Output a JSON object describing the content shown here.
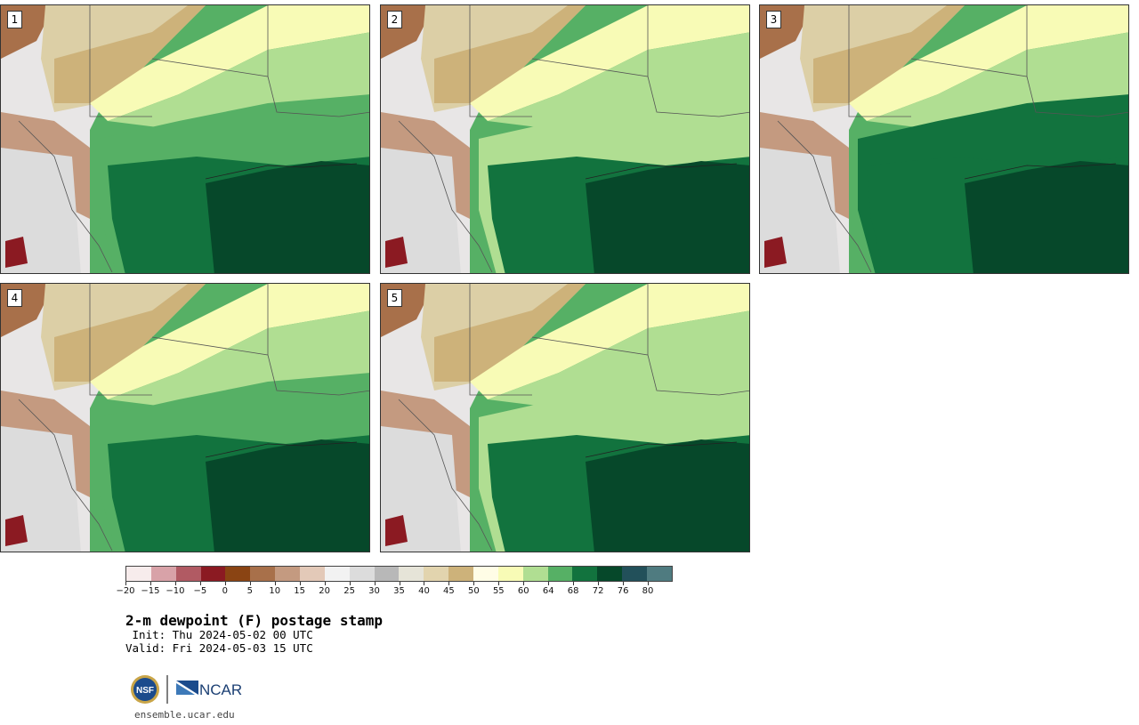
{
  "panels": [
    {
      "label": "1"
    },
    {
      "label": "2"
    },
    {
      "label": "3"
    },
    {
      "label": "4"
    },
    {
      "label": "5"
    }
  ],
  "colorbar": {
    "ticks": [
      "−20",
      "−15",
      "−10",
      "−5",
      "0",
      "5",
      "10",
      "15",
      "20",
      "25",
      "30",
      "35",
      "40",
      "45",
      "50",
      "55",
      "60",
      "64",
      "68",
      "72",
      "76",
      "80"
    ],
    "colors": [
      "#f7ecec",
      "#d8a2a8",
      "#b15a63",
      "#8b1a22",
      "#8a4413",
      "#a8704a",
      "#c49a80",
      "#e3c9b8",
      "#f2f2f2",
      "#dcdcdc",
      "#b8b8b8",
      "#e6e4d8",
      "#e2d4ae",
      "#cdb27a",
      "#fffde6",
      "#f8fbb6",
      "#b0de92",
      "#56b065",
      "#12733e",
      "#06482a",
      "#22505a",
      "#4f7b80"
    ]
  },
  "title": "2-m dewpoint (F) postage stamp",
  "init": " Init: Thu 2024-05-02 00 UTC",
  "valid": "Valid: Fri 2024-05-03 15 UTC",
  "logo": {
    "nsf": "NSF",
    "ncar": "NCAR"
  },
  "site": "ensemble.ucar.edu"
}
